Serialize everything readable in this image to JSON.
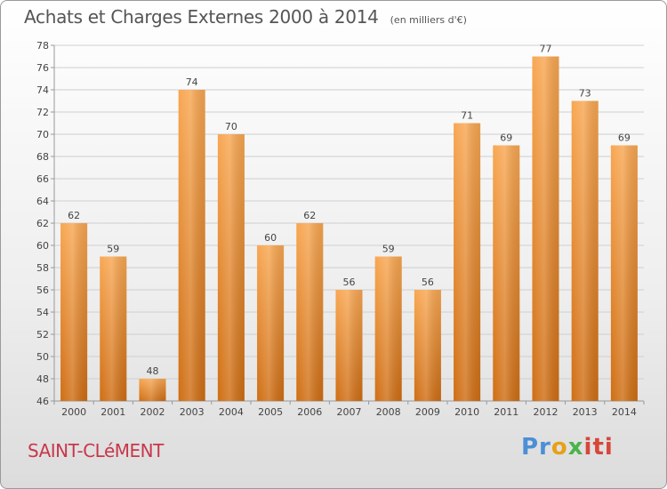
{
  "header": {
    "title": "Achats et Charges Externes 2000 à 2014",
    "subtitle": "(en milliers d'€)"
  },
  "footer": {
    "commune": "SAINT-CLéMENT",
    "logo_text": "Proxiti",
    "logo_parts": [
      "Pr",
      "o",
      "x",
      "iti"
    ]
  },
  "colors": {
    "bar_light": "#f8a752",
    "bar_dark": "#cf6e14",
    "grid": "#cfcfcf",
    "text": "#444444"
  },
  "chart_data": {
    "type": "bar",
    "title": "Achats et Charges Externes 2000 à 2014",
    "subtitle": "(en milliers d'€)",
    "categories": [
      "2000",
      "2001",
      "2002",
      "2003",
      "2004",
      "2005",
      "2006",
      "2007",
      "2008",
      "2009",
      "2010",
      "2011",
      "2012",
      "2013",
      "2014"
    ],
    "values": [
      62,
      59,
      48,
      74,
      70,
      60,
      62,
      56,
      59,
      56,
      71,
      69,
      77,
      73,
      69
    ],
    "data_labels": [
      "62",
      "59",
      "48",
      "74",
      "70",
      "60",
      "62",
      "56",
      "59",
      "56",
      "71",
      "69",
      "77",
      "73",
      "69"
    ],
    "ylim": [
      46,
      78
    ],
    "yticks": [
      46,
      48,
      50,
      52,
      54,
      56,
      58,
      60,
      62,
      64,
      66,
      68,
      70,
      72,
      74,
      76,
      78
    ],
    "grid": true
  }
}
